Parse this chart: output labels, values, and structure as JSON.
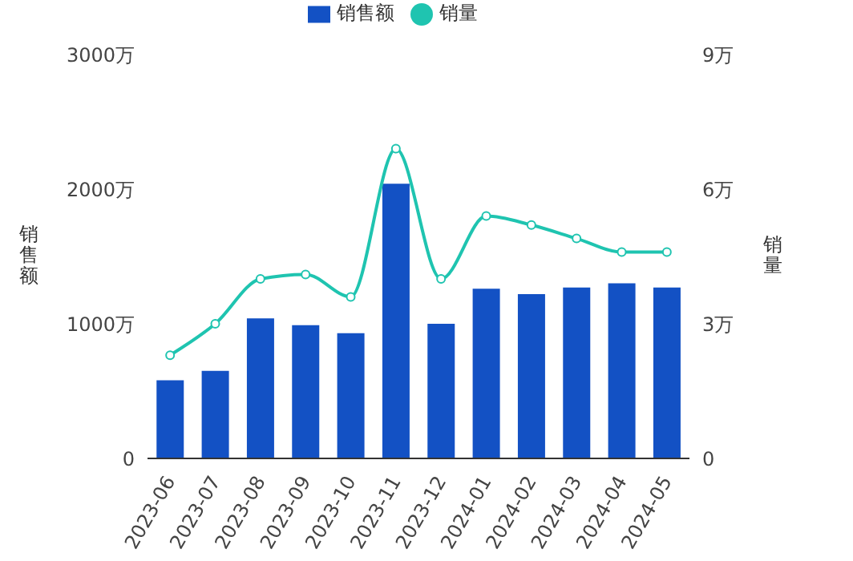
{
  "chart_data": {
    "type": "bar",
    "categories": [
      "2023-06",
      "2023-07",
      "2023-08",
      "2023-09",
      "2023-10",
      "2023-11",
      "2023-12",
      "2024-01",
      "2024-02",
      "2024-03",
      "2024-04",
      "2024-05"
    ],
    "ylabel": "销售额",
    "y2label": "销量",
    "series": [
      {
        "name": "销售额",
        "color": "#1351c4",
        "values": [
          580,
          650,
          1040,
          990,
          930,
          2040,
          1000,
          1260,
          1220,
          1270,
          1300,
          1270
        ]
      },
      {
        "name": "销量",
        "type": "line",
        "axis": "y2",
        "color": "#1fc4b0",
        "marker": "circle",
        "values": [
          2.3,
          3.0,
          4.0,
          4.1,
          3.6,
          6.9,
          4.0,
          5.4,
          5.2,
          4.9,
          4.6,
          4.6
        ]
      }
    ],
    "ylim": [
      0,
      3000
    ],
    "yticks": [
      0,
      {
        "value": 1000,
        "label": "1000万"
      },
      {
        "value": 2000,
        "label": "2000万"
      },
      {
        "value": 3000,
        "label": "3000万"
      }
    ],
    "y2lim": [
      0,
      9
    ],
    "y2ticks": [
      0,
      {
        "value": 3,
        "label": "3万"
      },
      {
        "value": 6,
        "label": "6万"
      },
      {
        "value": 9,
        "label": "9万"
      }
    ],
    "grid": false,
    "legend": "top"
  }
}
